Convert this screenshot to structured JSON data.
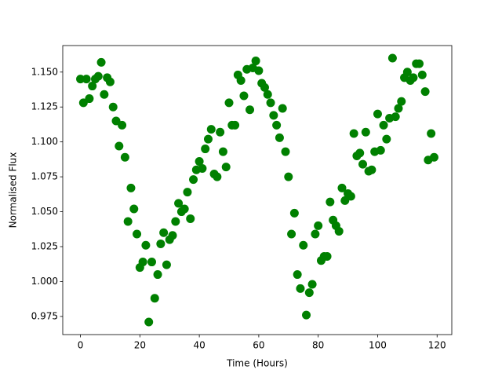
{
  "chart_data": {
    "type": "scatter",
    "xlabel": "Time (Hours)",
    "ylabel": "Normalised Flux",
    "color": "#008000",
    "x": [
      0,
      1,
      2,
      3,
      4,
      5,
      6,
      7,
      8,
      9,
      10,
      11,
      12,
      13,
      14,
      15,
      16,
      17,
      18,
      19,
      20,
      21,
      22,
      23,
      24,
      25,
      26,
      27,
      28,
      29,
      30,
      31,
      32,
      33,
      34,
      35,
      36,
      37,
      38,
      39,
      40,
      41,
      42,
      43,
      44,
      45,
      46,
      47,
      48,
      49,
      50,
      51,
      52,
      53,
      54,
      55,
      56,
      57,
      58,
      59,
      60,
      61,
      62,
      63,
      64,
      65,
      66,
      67,
      68,
      69,
      70,
      71,
      72,
      73,
      74,
      75,
      76,
      77,
      78,
      79,
      80,
      81,
      82,
      83,
      84,
      85,
      86,
      87,
      88,
      89,
      90,
      91,
      92,
      93,
      94,
      95,
      96,
      97,
      98,
      99,
      100,
      101,
      102,
      103,
      104,
      105,
      106,
      107,
      108,
      109,
      110,
      111,
      112,
      113,
      114,
      115,
      116,
      117,
      118,
      119
    ],
    "values": [
      1.145,
      1.128,
      1.145,
      1.131,
      1.14,
      1.145,
      1.147,
      1.157,
      1.134,
      1.146,
      1.143,
      1.125,
      1.115,
      1.097,
      1.112,
      1.089,
      1.043,
      1.067,
      1.052,
      1.034,
      1.01,
      1.014,
      1.026,
      0.971,
      1.014,
      0.988,
      1.005,
      1.027,
      1.035,
      1.012,
      1.03,
      1.033,
      1.043,
      1.056,
      1.05,
      1.052,
      1.064,
      1.045,
      1.073,
      1.08,
      1.086,
      1.081,
      1.095,
      1.102,
      1.109,
      1.077,
      1.075,
      1.107,
      1.093,
      1.082,
      1.128,
      1.112,
      1.112,
      1.148,
      1.144,
      1.133,
      1.152,
      1.123,
      1.153,
      1.158,
      1.151,
      1.142,
      1.139,
      1.134,
      1.128,
      1.119,
      1.112,
      1.103,
      1.124,
      1.093,
      1.075,
      1.034,
      1.049,
      1.005,
      0.995,
      1.026,
      0.976,
      0.992,
      0.998,
      1.034,
      1.04,
      1.015,
      1.018,
      1.018,
      1.057,
      1.044,
      1.04,
      1.036,
      1.067,
      1.058,
      1.063,
      1.061,
      1.106,
      1.09,
      1.092,
      1.084,
      1.107,
      1.079,
      1.08,
      1.093,
      1.12,
      1.094,
      1.112,
      1.102,
      1.117,
      1.16,
      1.118,
      1.124,
      1.129,
      1.146,
      1.15,
      1.144,
      1.146,
      1.156,
      1.156,
      1.148,
      1.136,
      1.087,
      1.106,
      1.089
    ],
    "xlim": [
      -5.95,
      124.95
    ],
    "ylim": [
      0.962,
      1.169
    ],
    "xticks": [
      0,
      20,
      40,
      60,
      80,
      100,
      120
    ],
    "yticks": [
      0.975,
      {
        "value": 1.0,
        "label": "1.000"
      },
      1.025,
      {
        "value": 1.05,
        "label": "1.050"
      },
      1.075,
      {
        "value": 1.1,
        "label": "1.100"
      },
      1.125,
      {
        "value": 1.15,
        "label": "1.150"
      }
    ]
  }
}
